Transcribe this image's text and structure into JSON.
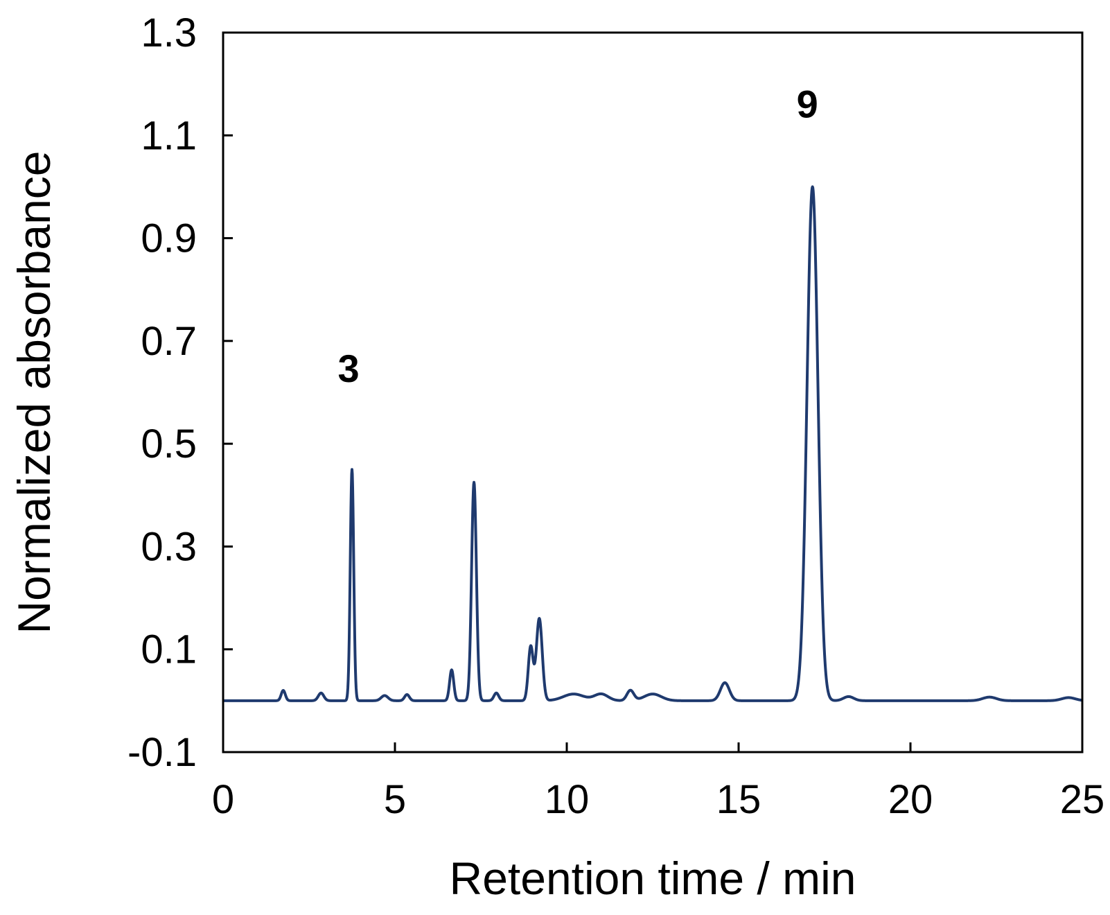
{
  "chart_data": {
    "type": "line",
    "title": "",
    "xlabel": "Retention time / min",
    "ylabel": "Normalized absorbance",
    "xlim": [
      0,
      25
    ],
    "ylim": [
      -0.1,
      1.3
    ],
    "x_ticks": [
      0,
      5,
      10,
      15,
      20,
      25
    ],
    "x_tick_labels": [
      "0",
      "5",
      "10",
      "15",
      "20",
      "25"
    ],
    "y_ticks": [
      -0.1,
      0.1,
      0.3,
      0.5,
      0.7,
      0.9,
      1.1,
      1.3
    ],
    "y_tick_labels": [
      "-0.1",
      "0.1",
      "0.3",
      "0.5",
      "0.7",
      "0.9",
      "1.1",
      "1.3"
    ],
    "grid": false,
    "legend": "none",
    "line_color": "#1f3a6e",
    "baseline": 0,
    "peaks": [
      {
        "x": 1.75,
        "y": 0.02,
        "w": 0.06
      },
      {
        "x": 2.85,
        "y": 0.015,
        "w": 0.08
      },
      {
        "x": 3.75,
        "y": 0.45,
        "w": 0.05
      },
      {
        "x": 4.7,
        "y": 0.01,
        "w": 0.1
      },
      {
        "x": 5.35,
        "y": 0.012,
        "w": 0.07
      },
      {
        "x": 6.65,
        "y": 0.06,
        "w": 0.06
      },
      {
        "x": 7.3,
        "y": 0.425,
        "w": 0.07
      },
      {
        "x": 7.95,
        "y": 0.015,
        "w": 0.07
      },
      {
        "x": 8.95,
        "y": 0.105,
        "w": 0.07
      },
      {
        "x": 9.2,
        "y": 0.16,
        "w": 0.085
      },
      {
        "x": 10.2,
        "y": 0.013,
        "w": 0.3
      },
      {
        "x": 11.0,
        "y": 0.013,
        "w": 0.2
      },
      {
        "x": 11.85,
        "y": 0.02,
        "w": 0.1
      },
      {
        "x": 12.5,
        "y": 0.013,
        "w": 0.25
      },
      {
        "x": 14.6,
        "y": 0.035,
        "w": 0.13
      },
      {
        "x": 17.15,
        "y": 1.0,
        "w": 0.16
      },
      {
        "x": 18.2,
        "y": 0.008,
        "w": 0.15
      },
      {
        "x": 22.3,
        "y": 0.007,
        "w": 0.2
      },
      {
        "x": 24.6,
        "y": 0.006,
        "w": 0.2
      }
    ],
    "annotations": [
      {
        "text": "3",
        "x": 3.65,
        "y": 0.62
      },
      {
        "text": "9",
        "x": 17.0,
        "y": 1.135
      }
    ]
  }
}
